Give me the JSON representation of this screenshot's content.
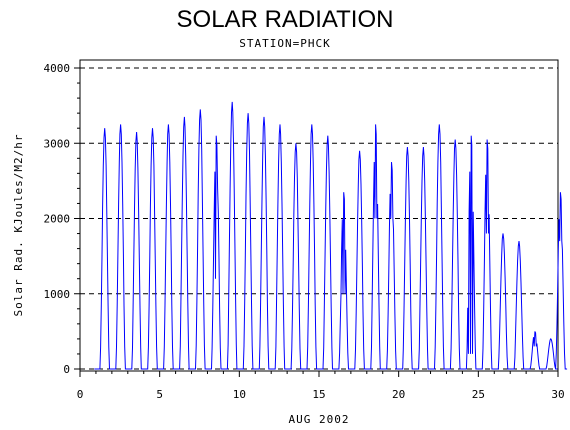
{
  "chart_data": {
    "type": "line",
    "title": "SOLAR RADIATION",
    "subtitle": "STATION=PHCK",
    "xlabel": "AUG 2002",
    "ylabel": "Solar Rad. KJoules/M2/hr",
    "xlim": [
      0,
      30
    ],
    "ylim": [
      0,
      4000
    ],
    "x_ticks": [
      0,
      5,
      10,
      15,
      20,
      25,
      30
    ],
    "y_ticks": [
      0,
      1000,
      2000,
      3000,
      4000
    ],
    "grid": "horizontal-dashed",
    "line_color": "#0000ff",
    "series": [
      {
        "daily_peaks": [
          {
            "day": 1,
            "peak": 3200,
            "dips": []
          },
          {
            "day": 2,
            "peak": 3250,
            "dips": []
          },
          {
            "day": 3,
            "peak": 3150,
            "dips": []
          },
          {
            "day": 4,
            "peak": 3200,
            "dips": []
          },
          {
            "day": 5,
            "peak": 3250,
            "dips": []
          },
          {
            "day": 6,
            "peak": 3350,
            "dips": []
          },
          {
            "day": 7,
            "peak": 3450,
            "dips": []
          },
          {
            "day": 8,
            "peak": 3100,
            "dips": [
              1200,
              2400
            ]
          },
          {
            "day": 9,
            "peak": 3550,
            "dips": []
          },
          {
            "day": 10,
            "peak": 3400,
            "dips": []
          },
          {
            "day": 11,
            "peak": 3350,
            "dips": []
          },
          {
            "day": 12,
            "peak": 3250,
            "dips": []
          },
          {
            "day": 13,
            "peak": 3000,
            "dips": []
          },
          {
            "day": 14,
            "peak": 3250,
            "dips": []
          },
          {
            "day": 15,
            "peak": 3100,
            "dips": []
          },
          {
            "day": 16,
            "peak": 2350,
            "dips": [
              1000
            ]
          },
          {
            "day": 17,
            "peak": 2900,
            "dips": []
          },
          {
            "day": 18,
            "peak": 3250,
            "dips": [
              2000
            ]
          },
          {
            "day": 19,
            "peak": 2750,
            "dips": [
              2000
            ]
          },
          {
            "day": 20,
            "peak": 2950,
            "dips": []
          },
          {
            "day": 21,
            "peak": 2950,
            "dips": []
          },
          {
            "day": 22,
            "peak": 3250,
            "dips": []
          },
          {
            "day": 23,
            "peak": 3050,
            "dips": []
          },
          {
            "day": 24,
            "peak": 3100,
            "dips": [
              200
            ]
          },
          {
            "day": 25,
            "peak": 3050,
            "dips": [
              1800
            ]
          },
          {
            "day": 26,
            "peak": 1800,
            "dips": []
          },
          {
            "day": 27,
            "peak": 1700,
            "dips": []
          },
          {
            "day": 28,
            "peak": 500,
            "dips": [
              300
            ]
          },
          {
            "day": 29,
            "peak": 400,
            "dips": []
          },
          {
            "day": 29.6,
            "peak": 2350,
            "dips": [
              1700
            ]
          }
        ]
      }
    ]
  }
}
